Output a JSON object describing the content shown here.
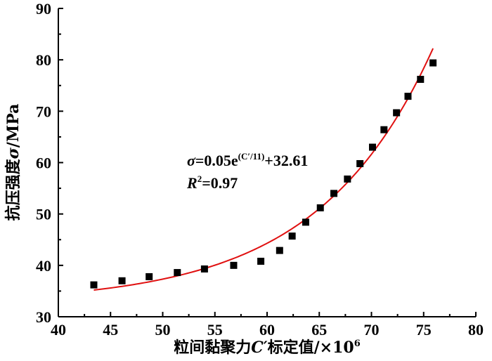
{
  "chart_data": {
    "type": "scatter",
    "title": "",
    "xlabel": "粒间黏聚力C′标定值/×10⁶",
    "xlabel_parts": {
      "pre": "粒间黏聚力",
      "var": "C′",
      "post": "标定值/×10",
      "sup": "6"
    },
    "ylabel": "抗压强度σ/MPa",
    "ylabel_parts": {
      "pre": "抗压强度",
      "var": "σ",
      "post": "/MPa"
    },
    "xlim": [
      40,
      80
    ],
    "ylim": [
      30,
      90
    ],
    "xticks": [
      "40",
      "45",
      "50",
      "55",
      "60",
      "65",
      "70",
      "75",
      "80"
    ],
    "yticks": [
      "30",
      "40",
      "50",
      "60",
      "70",
      "80",
      "90"
    ],
    "grid": false,
    "series": [
      {
        "marker": "square",
        "color": "#000000",
        "x": [
          43.4,
          46.1,
          48.7,
          51.4,
          54.0,
          56.8,
          59.4,
          61.2,
          62.4,
          63.7,
          65.1,
          66.4,
          67.7,
          68.9,
          70.1,
          71.2,
          72.4,
          73.5,
          74.7,
          75.9
        ],
        "y": [
          36.2,
          37.0,
          37.8,
          38.6,
          39.3,
          40.0,
          40.8,
          42.9,
          45.7,
          48.4,
          51.2,
          54.0,
          56.8,
          59.8,
          63.0,
          66.4,
          69.7,
          72.9,
          76.2,
          79.4
        ]
      }
    ],
    "fit": {
      "color": "#e01010",
      "model": "exponential",
      "a": 0.05,
      "b": 11,
      "c": 32.61,
      "x_range": [
        43.4,
        75.9
      ]
    },
    "annotation": {
      "eq_var": "σ",
      "eq_body": "=0.05e",
      "eq_exp": "(C′/11)",
      "eq_tail": "+32.61",
      "r2_var": "R",
      "r2_sup": "2",
      "r2_tail": "=0.97"
    }
  }
}
